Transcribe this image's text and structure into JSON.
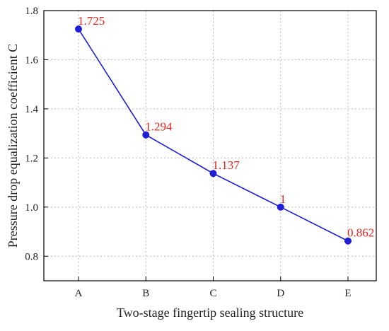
{
  "chart_data": {
    "type": "line",
    "categories": [
      "A",
      "B",
      "C",
      "D",
      "E"
    ],
    "series": [
      {
        "values": [
          1.725,
          1.294,
          1.137,
          1.0,
          0.862
        ]
      }
    ],
    "data_labels": [
      "1.725",
      "1.294",
      "1.137",
      "1",
      "0.862"
    ],
    "xlabel": "Two-stage fingertip sealing structure",
    "ylabel": "Pressure drop equalization coefficient C",
    "ylim": [
      0.7,
      1.8
    ],
    "yticks": [
      0.8,
      1.0,
      1.2,
      1.4,
      1.6,
      1.8
    ],
    "ytick_labels": [
      "0.8",
      "1.0",
      "1.2",
      "1.4",
      "1.6",
      "1.8"
    ],
    "grid": true,
    "colors": {
      "line": "#1f1fd6",
      "marker": "#1f1fd6",
      "data_label": "#e8251f",
      "grid": "#bdbdbd",
      "axis": "#000000"
    }
  }
}
